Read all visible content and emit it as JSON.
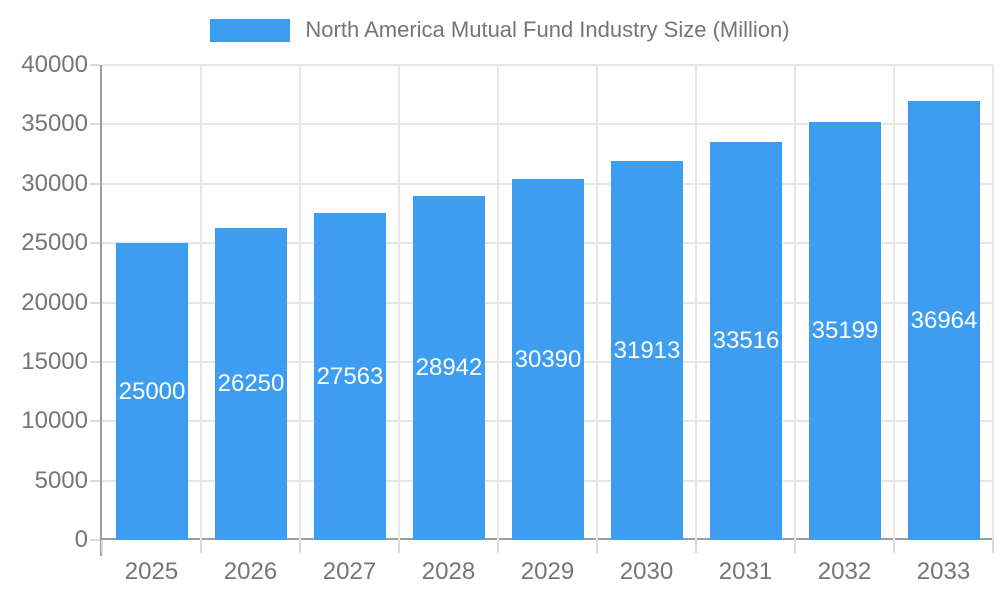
{
  "legend": {
    "label": "North America Mutual Fund Industry Size (Million)"
  },
  "chart_data": {
    "type": "bar",
    "title": "North America Mutual Fund Industry Size (Million)",
    "categories": [
      "2025",
      "2026",
      "2027",
      "2028",
      "2029",
      "2030",
      "2031",
      "2032",
      "2033"
    ],
    "values": [
      25000,
      26250,
      27563,
      28942,
      30390,
      31913,
      33516,
      35199,
      36964
    ],
    "bar_labels": [
      "25000",
      "26250",
      "27563",
      "28942",
      "30390",
      "31913",
      "33516",
      "35199",
      "36964"
    ],
    "xlabel": "",
    "ylabel": "",
    "ylim": [
      0,
      40000
    ],
    "yticks": [
      0,
      5000,
      10000,
      15000,
      20000,
      25000,
      30000,
      35000,
      40000
    ],
    "grid": true,
    "legend_position": "top",
    "colors": {
      "bar": "#3d9df0",
      "bar_label": "#ffffff",
      "axis_line": "#9e9e9e",
      "gridline": "#e6e6e6",
      "tick_mark": "#dadada",
      "tick_label": "#757575",
      "legend_text": "#757575",
      "background": "#ffffff"
    }
  }
}
